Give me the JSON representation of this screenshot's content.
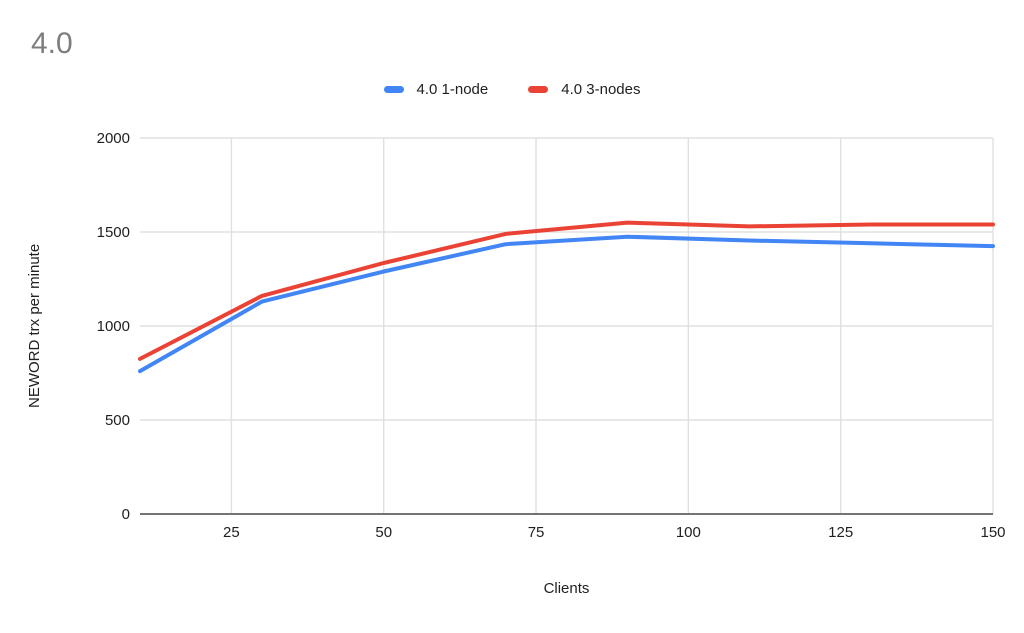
{
  "title": "4.0",
  "legend": {
    "items": [
      {
        "label": "4.0 1-node",
        "color": "#4285f4"
      },
      {
        "label": "4.0 3-nodes",
        "color": "#ea4335"
      }
    ]
  },
  "axes": {
    "y_title": "NEWORD trx per minute",
    "x_title": "Clients"
  },
  "chart_data": {
    "type": "line",
    "title": "4.0",
    "xlabel": "Clients",
    "ylabel": "NEWORD trx per minute",
    "x": [
      10,
      30,
      50,
      70,
      90,
      110,
      130,
      150
    ],
    "series": [
      {
        "name": "4.0 1-node",
        "color": "#4285f4",
        "values": [
          760,
          1130,
          1290,
          1435,
          1475,
          1455,
          1440,
          1425
        ]
      },
      {
        "name": "4.0 3-nodes",
        "color": "#ea4335",
        "values": [
          825,
          1160,
          1335,
          1490,
          1550,
          1530,
          1540,
          1540
        ]
      }
    ],
    "xticks": [
      25,
      50,
      75,
      100,
      125,
      150
    ],
    "yticks": [
      0,
      500,
      1000,
      1500,
      2000
    ],
    "xlim": [
      10,
      150
    ],
    "ylim": [
      0,
      2000
    ],
    "grid": true,
    "legend_position": "top",
    "line_width": 4,
    "colors": {
      "gridline": "#e0e0e0",
      "axis_line": "#616161",
      "tick_label": "#1f1f1f",
      "title": "#7d7d7d"
    }
  }
}
